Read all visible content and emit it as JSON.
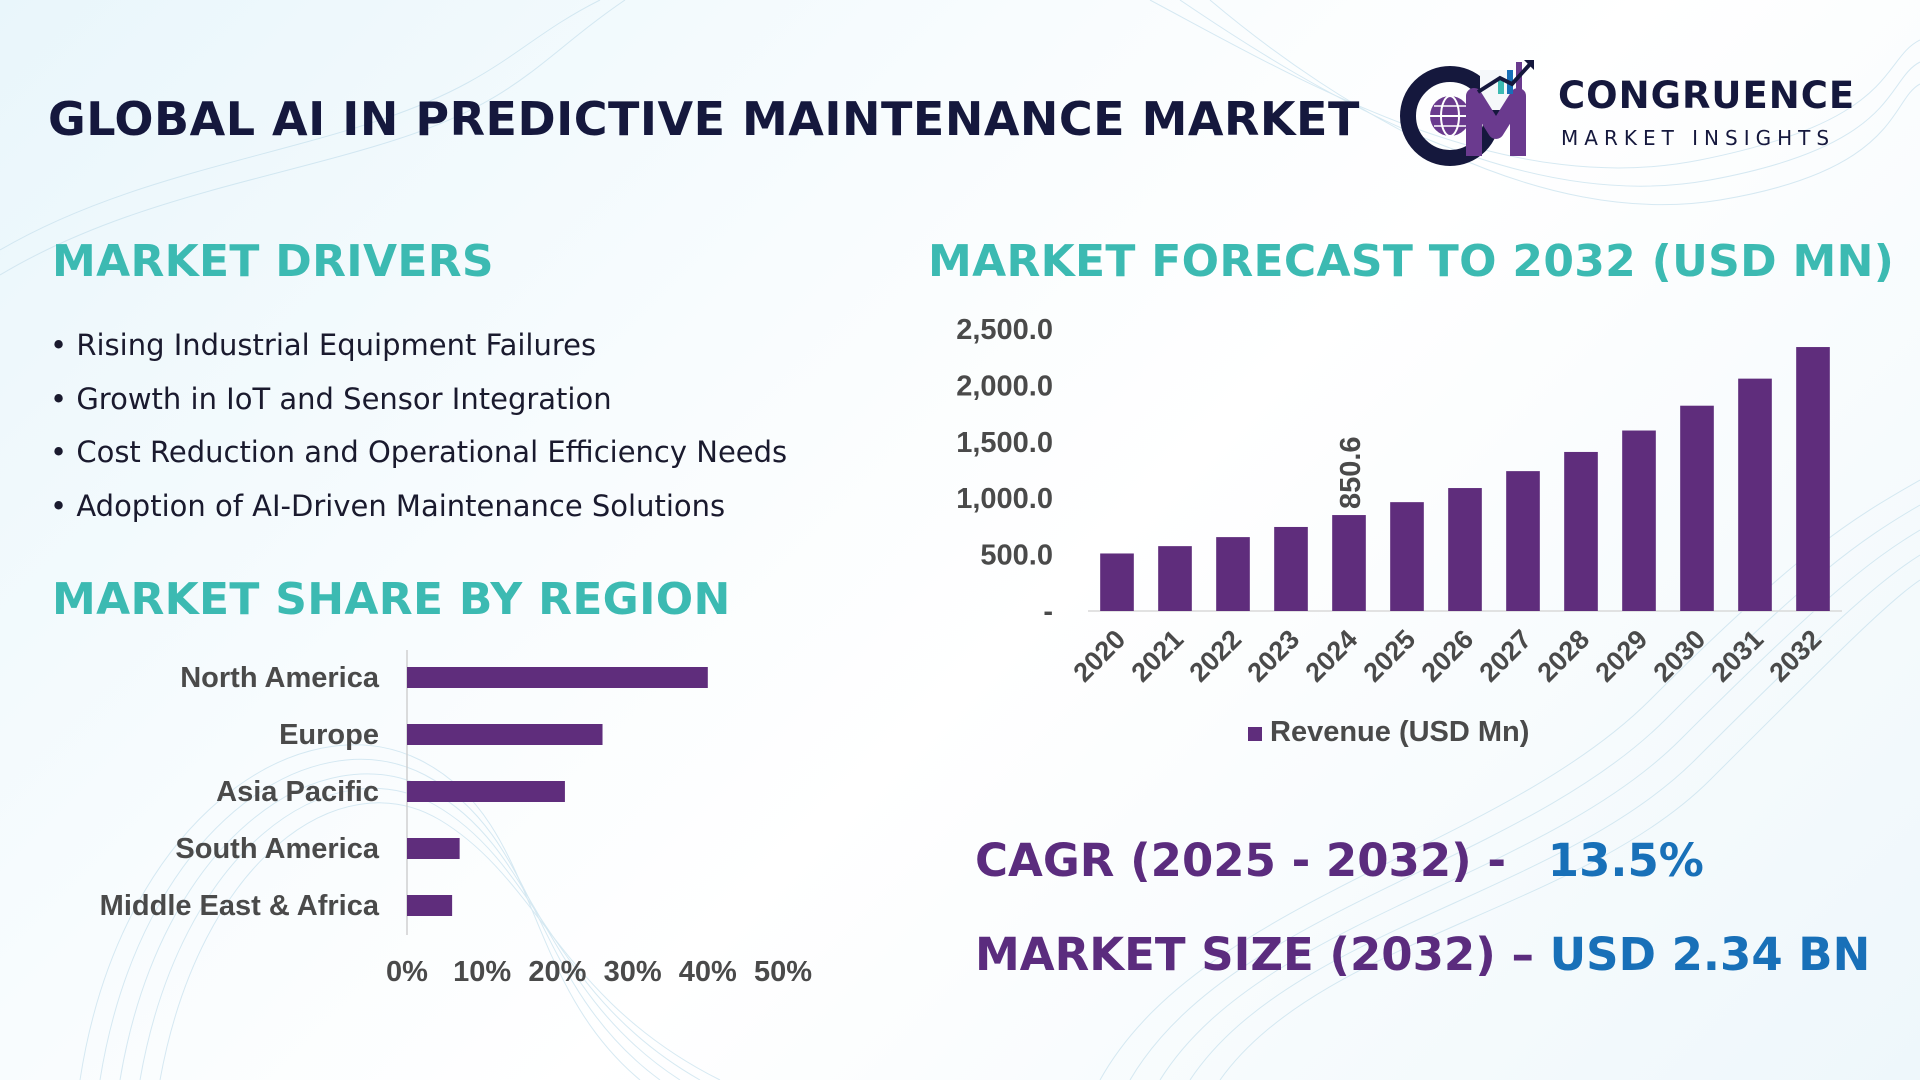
{
  "title": "GLOBAL AI IN PREDICTIVE MAINTENANCE MARKET",
  "logo": {
    "brand": "CONGRUENCE",
    "tagline": "MARKET INSIGHTS",
    "monogram": "CM",
    "icon": "globe-bar-chart-icon"
  },
  "colors": {
    "bar": "#5f2d7c",
    "heading_teal": "#3cbab2",
    "title_navy": "#15183d",
    "kpi_label_purple": "#5b2c7e",
    "kpi_value_blue": "#1870b8"
  },
  "drivers": {
    "heading": "MARKET DRIVERS",
    "items": [
      "Rising Industrial Equipment Failures",
      "Growth in IoT and Sensor Integration",
      "Cost Reduction and Operational Efficiency Needs",
      "Adoption of AI-Driven Maintenance Solutions"
    ]
  },
  "region": {
    "heading": "MARKET SHARE BY REGION"
  },
  "forecast": {
    "heading": "MARKET FORECAST TO 2032 (USD MN)"
  },
  "kpis": {
    "cagr_label": "CAGR (2025 - 2032) -",
    "cagr_value": "13.5%",
    "size_label": "MARKET SIZE (2032) –",
    "size_value": "USD 2.34 BN"
  },
  "chart_data": [
    {
      "type": "bar",
      "orientation": "horizontal",
      "categories": [
        "North America",
        "Europe",
        "Asia Pacific",
        "South America",
        "Middle East & Africa"
      ],
      "values": [
        40,
        26,
        21,
        7,
        6
      ],
      "x_ticks": [
        "0%",
        "10%",
        "20%",
        "30%",
        "40%",
        "50%"
      ],
      "xlim": [
        0,
        50
      ],
      "grid": false
    },
    {
      "type": "bar",
      "orientation": "vertical",
      "categories": [
        "2020",
        "2021",
        "2022",
        "2023",
        "2024",
        "2025",
        "2026",
        "2027",
        "2028",
        "2029",
        "2030",
        "2031",
        "2032"
      ],
      "series": [
        {
          "name": "Revenue (USD Mn)",
          "values": [
            510,
            575,
            655,
            745,
            850.6,
            965,
            1090,
            1240,
            1410,
            1600,
            1820,
            2060,
            2340
          ]
        }
      ],
      "data_labels": {
        "2024": "850.6"
      },
      "y_ticks": [
        "-",
        "500.0",
        "1,000.0",
        "1,500.0",
        "2,000.0",
        "2,500.0"
      ],
      "ylim": [
        0,
        2500
      ],
      "legend": "bottom",
      "grid": false
    }
  ]
}
